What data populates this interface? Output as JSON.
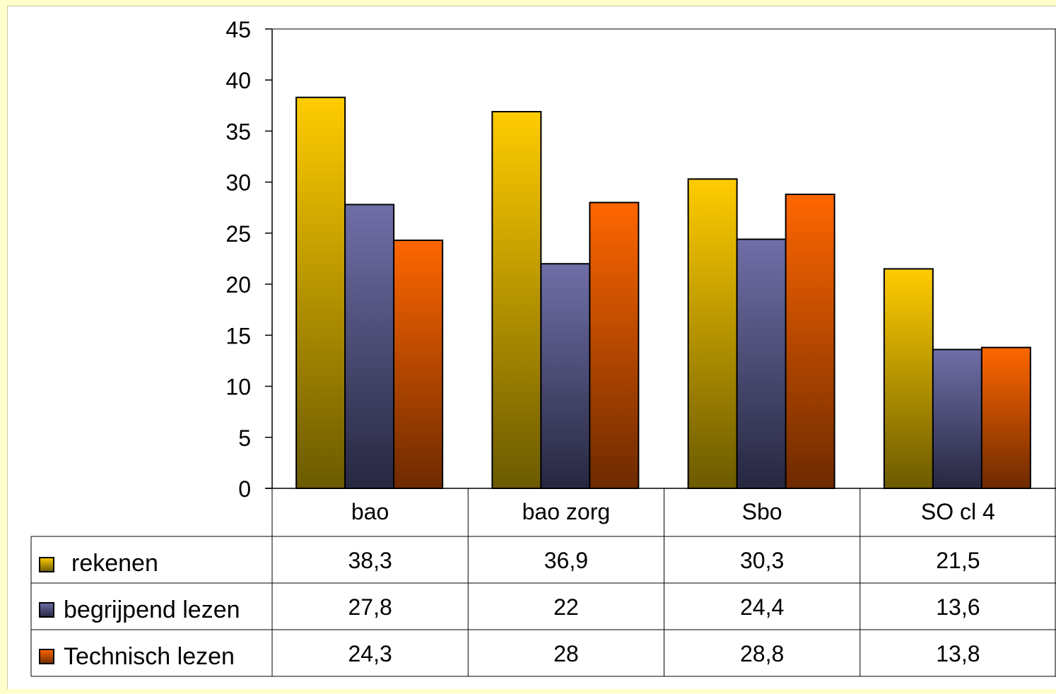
{
  "chart_data": {
    "type": "bar",
    "title": "",
    "xlabel": "",
    "ylabel": "",
    "ylim": [
      0,
      45
    ],
    "yticks": [
      0,
      5,
      10,
      15,
      20,
      25,
      30,
      35,
      40,
      45
    ],
    "categories": [
      "bao",
      "bao zorg",
      "Sbo",
      "SO cl 4"
    ],
    "series": [
      {
        "name": "rekenen",
        "values": [
          38.3,
          36.9,
          30.3,
          21.5
        ],
        "value_labels": [
          "38,3",
          "36,9",
          "30,3",
          "21,5"
        ],
        "color_top": "#ffcc00",
        "color_bottom": "#6b5a00"
      },
      {
        "name": "begrijpend lezen",
        "values": [
          27.8,
          22,
          24.4,
          13.6
        ],
        "value_labels": [
          "27,8",
          "22",
          "24,4",
          "13,6"
        ],
        "color_top": "#6f6fa8",
        "color_bottom": "#272740"
      },
      {
        "name": "Technisch lezen",
        "values": [
          24.3,
          28,
          28.8,
          13.8
        ],
        "value_labels": [
          "24,3",
          "28",
          "28,8",
          "13,8"
        ],
        "color_top": "#ff6600",
        "color_bottom": "#6e2a00"
      }
    ],
    "grid": false,
    "legend": "data-table-left"
  }
}
